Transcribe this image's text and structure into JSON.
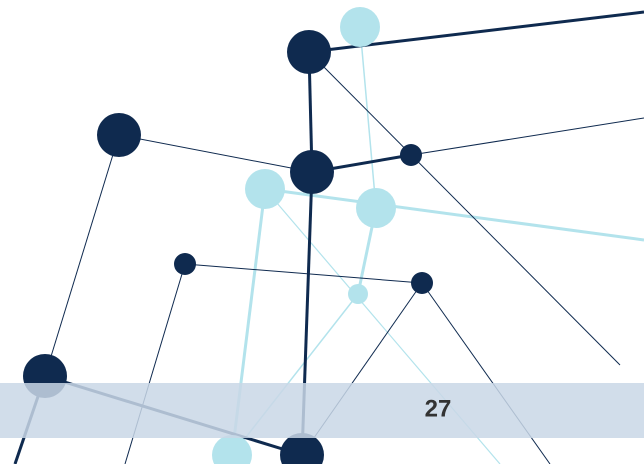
{
  "footer": {
    "page_number": "27"
  }
}
